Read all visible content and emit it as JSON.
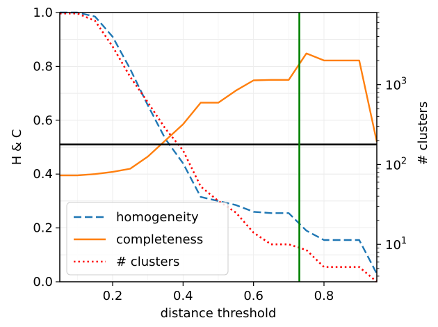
{
  "chart_data": {
    "type": "line",
    "xlabel": "distance threshold",
    "ylabel": "H & C",
    "y2label": "# clusters",
    "xlim": [
      0.05,
      0.95
    ],
    "ylim": [
      0.0,
      1.0
    ],
    "y2lim": [
      3.4,
      8000
    ],
    "y2scale": "log",
    "x_ticks": [
      0.2,
      0.4,
      0.6,
      0.8
    ],
    "y_ticks": [
      0.0,
      0.2,
      0.4,
      0.6,
      0.8,
      1.0
    ],
    "y2_ticks": [
      10,
      100,
      1000
    ],
    "y2_tick_labels": [
      "10",
      "10",
      "10"
    ],
    "y2_tick_exponents": [
      "1",
      "2",
      "3"
    ],
    "grid": true,
    "legend_position": "lower-left",
    "colors": {
      "homogeneity": "#1f77b4",
      "completeness": "#ff7f0e",
      "clusters": "#ff0000",
      "hline": "#000000",
      "vline": "#008000"
    },
    "x": [
      0.05,
      0.1,
      0.15,
      0.2,
      0.25,
      0.3,
      0.35,
      0.4,
      0.45,
      0.5,
      0.55,
      0.6,
      0.65,
      0.7,
      0.75,
      0.8,
      0.85,
      0.9,
      0.95
    ],
    "series": [
      {
        "name": "homogeneity",
        "axis": "left",
        "style": "dashed",
        "values": [
          1.0,
          1.0,
          0.985,
          0.91,
          0.79,
          0.655,
          0.53,
          0.44,
          0.315,
          0.3,
          0.285,
          0.26,
          0.255,
          0.255,
          0.19,
          0.155,
          0.155,
          0.155,
          0.03
        ]
      },
      {
        "name": "completeness",
        "axis": "left",
        "style": "solid",
        "values": [
          0.395,
          0.395,
          0.4,
          0.408,
          0.42,
          0.465,
          0.525,
          0.585,
          0.665,
          0.665,
          0.71,
          0.748,
          0.75,
          0.75,
          0.848,
          0.822,
          0.822,
          0.822,
          0.52
        ]
      },
      {
        "name": "# clusters",
        "axis": "right",
        "style": "dotted",
        "values": [
          7800,
          7800,
          6300,
          3000,
          1250,
          600,
          280,
          150,
          53,
          35,
          25,
          14,
          10,
          10,
          8.5,
          5.2,
          5.2,
          5.2,
          3.4
        ]
      }
    ],
    "reference_lines": {
      "horizontal_y": 0.51,
      "vertical_x": 0.73
    },
    "legend": [
      "homogeneity",
      "completeness",
      "# clusters"
    ]
  }
}
